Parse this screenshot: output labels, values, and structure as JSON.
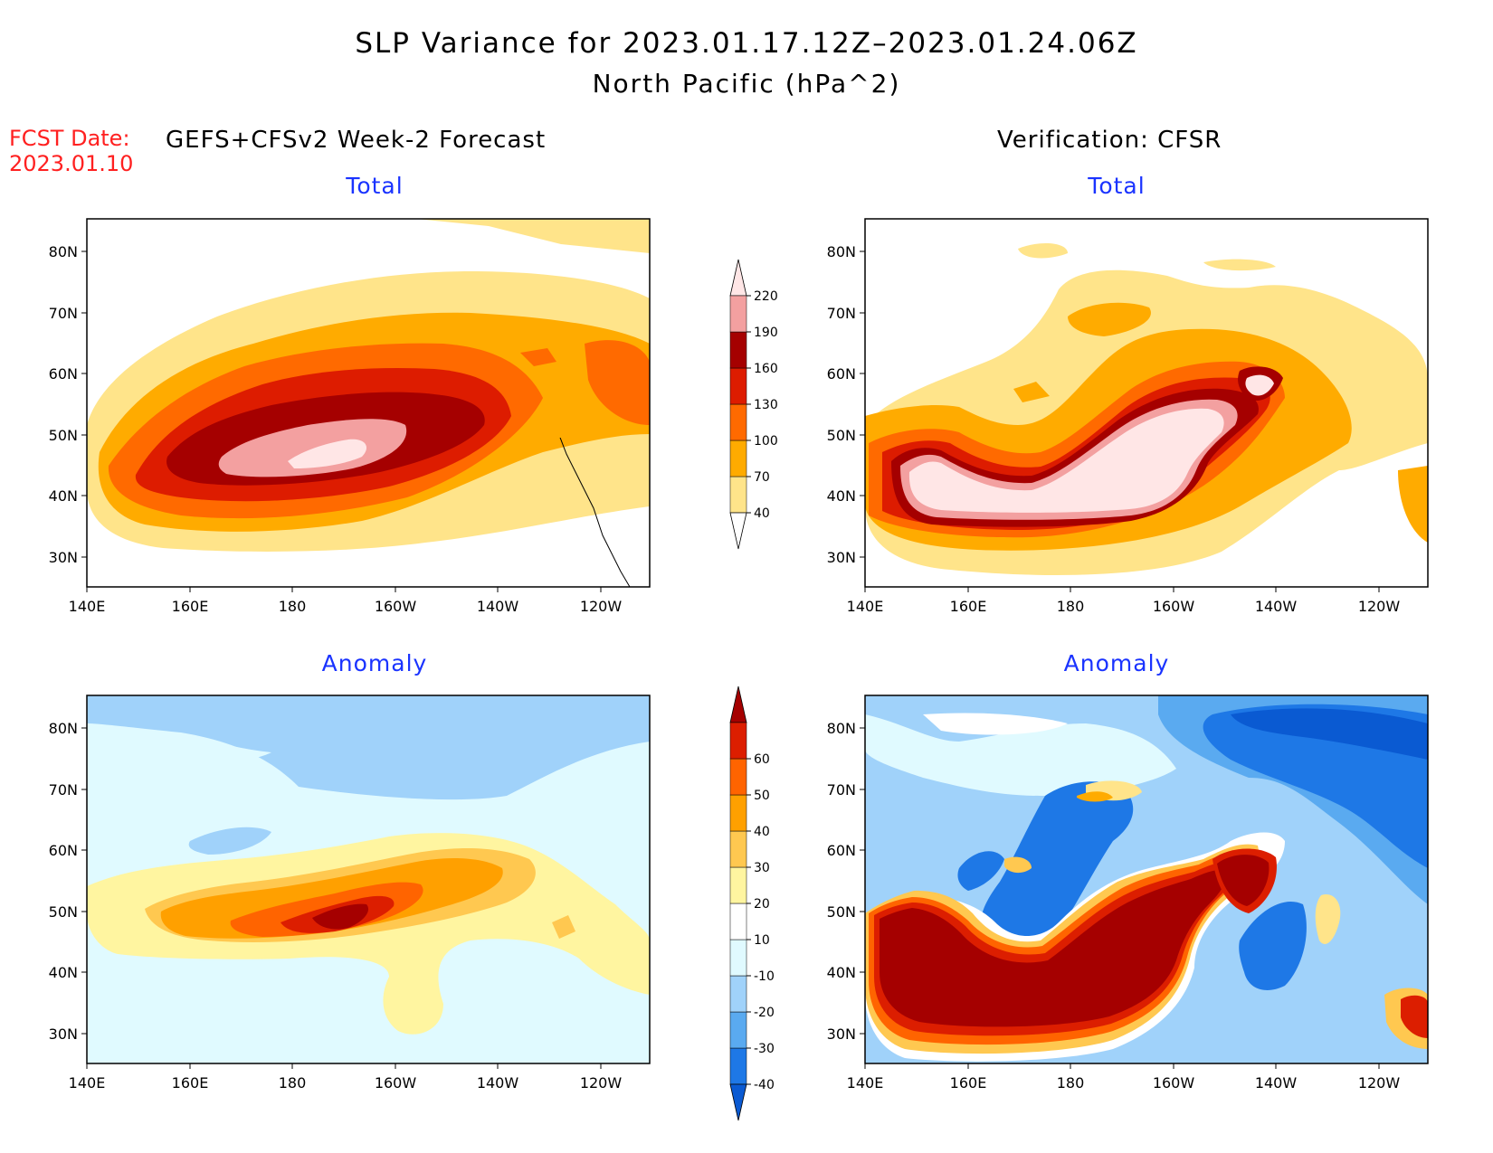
{
  "header": {
    "title_line1": "SLP Variance for 2023.01.17.12Z–2023.01.24.06Z",
    "title_line2": "North Pacific (hPa^2)",
    "fcst_label": "FCST Date:",
    "fcst_date": "2023.01.10",
    "forecast_header": "GEFS+CFSv2 Week-2 Forecast",
    "verification_header": "Verification: CFSR"
  },
  "panels": {
    "fc_total": {
      "title": "Total"
    },
    "ver_total": {
      "title": "Total"
    },
    "fc_anom": {
      "title": "Anomaly"
    },
    "ver_anom": {
      "title": "Anomaly"
    }
  },
  "axes": {
    "lat_labels": [
      "80N",
      "70N",
      "60N",
      "50N",
      "40N",
      "30N"
    ],
    "lon_labels": [
      "140E",
      "160E",
      "180",
      "160W",
      "140W",
      "120W"
    ]
  },
  "colorbars": {
    "total": {
      "levels": [
        "40",
        "70",
        "100",
        "130",
        "160",
        "190",
        "220"
      ],
      "colors": [
        "#ffffff",
        "#ffe48a",
        "#ffab00",
        "#ff6a00",
        "#dd1c00",
        "#a50000",
        "#f3a0a0",
        "#ffe6e6"
      ]
    },
    "anomaly": {
      "levels": [
        "-40",
        "-30",
        "-20",
        "-10",
        "10",
        "20",
        "30",
        "40",
        "50",
        "60"
      ],
      "colors": [
        "#0a5ad2",
        "#1e78e6",
        "#5aaaf0",
        "#a0d2fa",
        "#e0faff",
        "#ffffff",
        "#fff5a0",
        "#ffc850",
        "#ffa000",
        "#ff6400",
        "#dc1e00",
        "#a50000"
      ]
    }
  },
  "colors": {
    "title_blue": "#1a33ff",
    "fcst_red": "#ff2020"
  }
}
